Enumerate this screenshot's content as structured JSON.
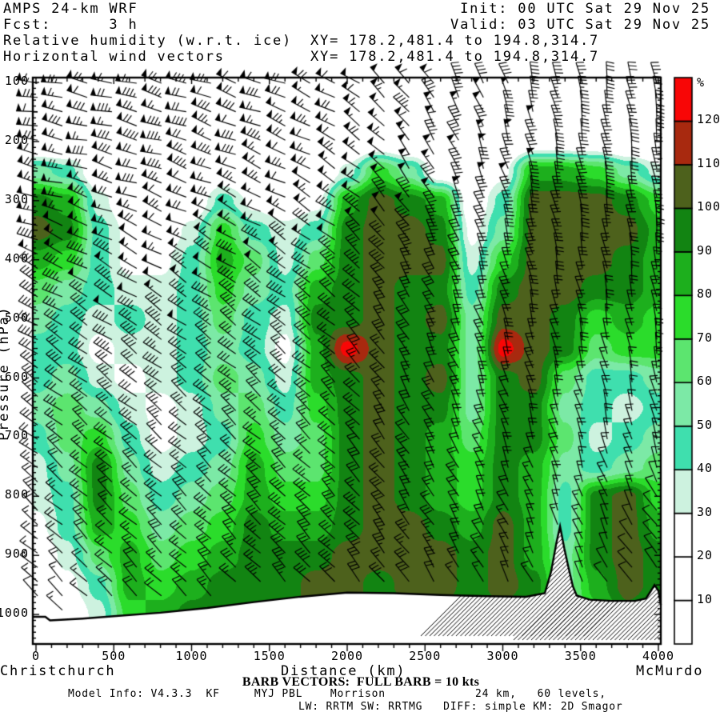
{
  "header": {
    "model_line": "AMPS 24-km WRF",
    "fcst_line": "Fcst:      3 h",
    "field_line1": "Relative humidity (w.r.t. ice)",
    "field_line2": "Horizontal wind vectors",
    "init_line": "Init: 00 UTC Sat 29 Nov 25",
    "valid_line": "Valid: 03 UTC Sat 29 Nov 25",
    "xy_line1": "XY= 178.2,481.4 to 194.8,314.7",
    "xy_line2": "XY= 178.2,481.4 to 194.8,314.7"
  },
  "axes": {
    "x": {
      "title": "Distance (km)",
      "station_left": "Christchurch",
      "station_right": "McMurdo",
      "tick_labels": [
        0,
        500,
        1000,
        1500,
        2000,
        2500,
        3000,
        3500,
        4000
      ],
      "minor_tick_step_km": 100,
      "range_km": [
        -20,
        4016
      ]
    },
    "y": {
      "title": "Pressure (hPa)",
      "tick_labels": [
        100,
        200,
        300,
        400,
        500,
        600,
        700,
        800,
        900,
        1000
      ],
      "minor_tick_step_hpa": 10,
      "range_hpa": [
        92,
        1050
      ]
    }
  },
  "colorbar": {
    "unit": "%",
    "tick_labels": [
      120,
      110,
      100,
      90,
      80,
      70,
      60,
      50,
      40,
      30,
      20,
      10
    ],
    "bin_colors_low_to_high": [
      "#ffffff",
      "#ffffff",
      "#ffffff",
      "#cdf2df",
      "#3fdfae",
      "#7ce9a6",
      "#5ce56f",
      "#2bdc2b",
      "#1daf1d",
      "#128412",
      "#4d611c",
      "#a8290f",
      "#f80606"
    ]
  },
  "footer": {
    "barb_note": "BARB VECTORS:  FULL BARB = 10 kts",
    "model_info": "Model Info: V4.3.3  KF     MYJ PBL    Morrison             24 km,   60 levels,",
    "physics": "LW: RRTM SW: RRTMG   DIFF: simple KM: 2D Smagor"
  },
  "chart_data": {
    "type": "heatmap",
    "subtype": "filled-contour-vertical-cross-section",
    "title": "Relative humidity (w.r.t. ice), Horizontal wind vectors",
    "xlabel": "Distance (km)",
    "ylabel": "Pressure (hPa)",
    "contour_levels_percent": [
      10,
      20,
      30,
      40,
      50,
      60,
      70,
      80,
      90,
      100,
      110,
      120
    ],
    "barb_rule": "FULL BARB = 10 kts",
    "rh_grid": {
      "x_km": [
        0,
        200,
        400,
        600,
        800,
        1000,
        1200,
        1400,
        1600,
        1800,
        2000,
        2200,
        2400,
        2600,
        2800,
        3000,
        3200,
        3400,
        3600,
        3800,
        4000
      ],
      "p_hpa": [
        100,
        150,
        200,
        250,
        300,
        350,
        400,
        450,
        500,
        550,
        600,
        650,
        700,
        750,
        800,
        850,
        900,
        950,
        1000
      ],
      "values": [
        [
          5,
          5,
          5,
          5,
          5,
          5,
          5,
          5,
          5,
          5,
          5,
          5,
          5,
          5,
          5,
          5,
          5,
          5,
          5,
          5,
          5
        ],
        [
          5,
          5,
          5,
          5,
          5,
          5,
          5,
          5,
          5,
          5,
          5,
          5,
          5,
          5,
          5,
          5,
          5,
          5,
          5,
          5,
          5
        ],
        [
          5,
          5,
          5,
          5,
          5,
          5,
          5,
          5,
          5,
          5,
          5,
          15,
          5,
          5,
          5,
          5,
          15,
          15,
          15,
          5,
          5
        ],
        [
          55,
          45,
          15,
          5,
          5,
          5,
          15,
          5,
          5,
          5,
          35,
          75,
          55,
          15,
          5,
          25,
          85,
          85,
          75,
          55,
          35
        ],
        [
          95,
          85,
          35,
          15,
          5,
          15,
          45,
          25,
          15,
          25,
          85,
          105,
          95,
          85,
          15,
          45,
          105,
          105,
          105,
          95,
          75
        ],
        [
          105,
          95,
          45,
          25,
          15,
          35,
          75,
          45,
          35,
          45,
          95,
          105,
          105,
          95,
          25,
          55,
          105,
          105,
          105,
          105,
          85
        ],
        [
          85,
          75,
          45,
          25,
          25,
          45,
          85,
          65,
          35,
          65,
          95,
          105,
          105,
          105,
          35,
          75,
          105,
          105,
          105,
          95,
          85
        ],
        [
          65,
          55,
          45,
          35,
          35,
          45,
          75,
          55,
          45,
          85,
          95,
          105,
          95,
          95,
          45,
          95,
          105,
          105,
          95,
          95,
          85
        ],
        [
          55,
          45,
          35,
          45,
          35,
          45,
          65,
          45,
          35,
          95,
          95,
          105,
          95,
          105,
          55,
          105,
          105,
          95,
          75,
          85,
          75
        ],
        [
          45,
          45,
          25,
          35,
          35,
          45,
          55,
          45,
          25,
          85,
          125,
          105,
          95,
          95,
          55,
          125,
          105,
          95,
          65,
          75,
          75
        ],
        [
          45,
          55,
          35,
          25,
          35,
          45,
          65,
          55,
          35,
          85,
          95,
          105,
          95,
          105,
          55,
          95,
          105,
          65,
          45,
          45,
          55
        ],
        [
          55,
          65,
          55,
          35,
          25,
          35,
          55,
          65,
          45,
          75,
          95,
          105,
          95,
          95,
          55,
          95,
          95,
          55,
          45,
          35,
          45
        ],
        [
          45,
          65,
          75,
          45,
          25,
          35,
          45,
          75,
          55,
          65,
          95,
          105,
          95,
          85,
          65,
          95,
          95,
          65,
          35,
          45,
          55
        ],
        [
          35,
          55,
          95,
          55,
          35,
          45,
          55,
          85,
          65,
          65,
          95,
          105,
          95,
          85,
          75,
          95,
          85,
          55,
          45,
          55,
          65
        ],
        [
          35,
          45,
          95,
          65,
          45,
          55,
          65,
          85,
          75,
          75,
          95,
          105,
          95,
          85,
          75,
          95,
          85,
          45,
          95,
          105,
          75
        ],
        [
          25,
          45,
          85,
          75,
          55,
          65,
          75,
          95,
          85,
          85,
          95,
          105,
          105,
          95,
          85,
          105,
          85,
          45,
          95,
          105,
          85
        ],
        [
          15,
          35,
          65,
          85,
          65,
          75,
          85,
          95,
          95,
          95,
          105,
          105,
          105,
          105,
          95,
          105,
          85,
          55,
          95,
          105,
          95
        ],
        [
          15,
          25,
          45,
          85,
          75,
          85,
          95,
          95,
          95,
          105,
          105,
          95,
          105,
          105,
          95,
          105,
          95,
          55,
          85,
          105,
          95
        ],
        [
          15,
          15,
          35,
          75,
          85,
          95,
          95,
          95,
          95,
          105,
          105,
          95,
          95,
          95,
          95,
          95,
          85,
          55,
          75,
          95,
          85
        ]
      ]
    },
    "wind_grid": {
      "x_km": [
        0,
        400,
        800,
        1200,
        1600,
        2000,
        2400,
        2800,
        3200,
        3600,
        4000
      ],
      "p_hpa": [
        100,
        200,
        300,
        400,
        500,
        600,
        700,
        800,
        900,
        1000
      ],
      "speed_kt": [
        [
          65,
          70,
          75,
          70,
          65,
          60,
          55,
          45,
          40,
          35,
          30
        ],
        [
          70,
          75,
          80,
          75,
          70,
          65,
          55,
          50,
          45,
          40,
          35
        ],
        [
          60,
          65,
          70,
          65,
          60,
          55,
          50,
          45,
          40,
          35,
          30
        ],
        [
          45,
          50,
          55,
          50,
          45,
          40,
          35,
          30,
          30,
          25,
          25
        ],
        [
          35,
          40,
          45,
          40,
          35,
          30,
          30,
          25,
          25,
          20,
          20
        ],
        [
          30,
          35,
          35,
          35,
          30,
          30,
          25,
          25,
          20,
          20,
          15
        ],
        [
          25,
          30,
          30,
          30,
          30,
          25,
          25,
          20,
          20,
          15,
          15
        ],
        [
          20,
          25,
          25,
          30,
          35,
          30,
          25,
          20,
          15,
          15,
          10
        ],
        [
          15,
          20,
          25,
          30,
          35,
          35,
          30,
          20,
          15,
          10,
          10
        ],
        [
          10,
          15,
          20,
          25,
          30,
          30,
          25,
          15,
          10,
          10,
          5
        ]
      ],
      "shaft_angle_deg": [
        [
          170,
          168,
          165,
          162,
          160,
          150,
          130,
          115,
          105,
          100,
          100
        ],
        [
          170,
          168,
          165,
          160,
          158,
          148,
          128,
          112,
          104,
          100,
          98
        ],
        [
          165,
          162,
          160,
          156,
          152,
          145,
          125,
          112,
          104,
          100,
          98
        ],
        [
          155,
          152,
          150,
          148,
          145,
          140,
          122,
          110,
          104,
          100,
          98
        ],
        [
          150,
          148,
          146,
          144,
          142,
          138,
          120,
          110,
          105,
          102,
          100
        ],
        [
          145,
          143,
          142,
          140,
          140,
          136,
          120,
          112,
          106,
          104,
          102
        ],
        [
          142,
          140,
          140,
          138,
          138,
          135,
          122,
          114,
          108,
          106,
          104
        ],
        [
          140,
          138,
          138,
          136,
          136,
          134,
          124,
          118,
          112,
          110,
          120
        ],
        [
          138,
          136,
          136,
          135,
          135,
          133,
          126,
          120,
          116,
          115,
          130
        ],
        [
          135,
          135,
          134,
          134,
          134,
          132,
          128,
          122,
          120,
          125,
          140
        ]
      ]
    },
    "terrain_profile_km_hpa": [
      [
        -25,
        1004
      ],
      [
        60,
        1004
      ],
      [
        90,
        1010
      ],
      [
        160,
        1009
      ],
      [
        300,
        1007
      ],
      [
        500,
        1003
      ],
      [
        800,
        997
      ],
      [
        1100,
        989
      ],
      [
        1400,
        979
      ],
      [
        1700,
        970
      ],
      [
        2000,
        963
      ],
      [
        2300,
        964
      ],
      [
        2600,
        967
      ],
      [
        2900,
        969
      ],
      [
        3150,
        970
      ],
      [
        3270,
        964
      ],
      [
        3310,
        928
      ],
      [
        3345,
        878
      ],
      [
        3368,
        851
      ],
      [
        3395,
        888
      ],
      [
        3420,
        918
      ],
      [
        3450,
        952
      ],
      [
        3475,
        968
      ],
      [
        3560,
        975
      ],
      [
        3700,
        977
      ],
      [
        3850,
        977
      ],
      [
        3920,
        973
      ],
      [
        3950,
        961
      ],
      [
        3975,
        950
      ],
      [
        4000,
        960
      ],
      [
        4016,
        984
      ]
    ]
  }
}
